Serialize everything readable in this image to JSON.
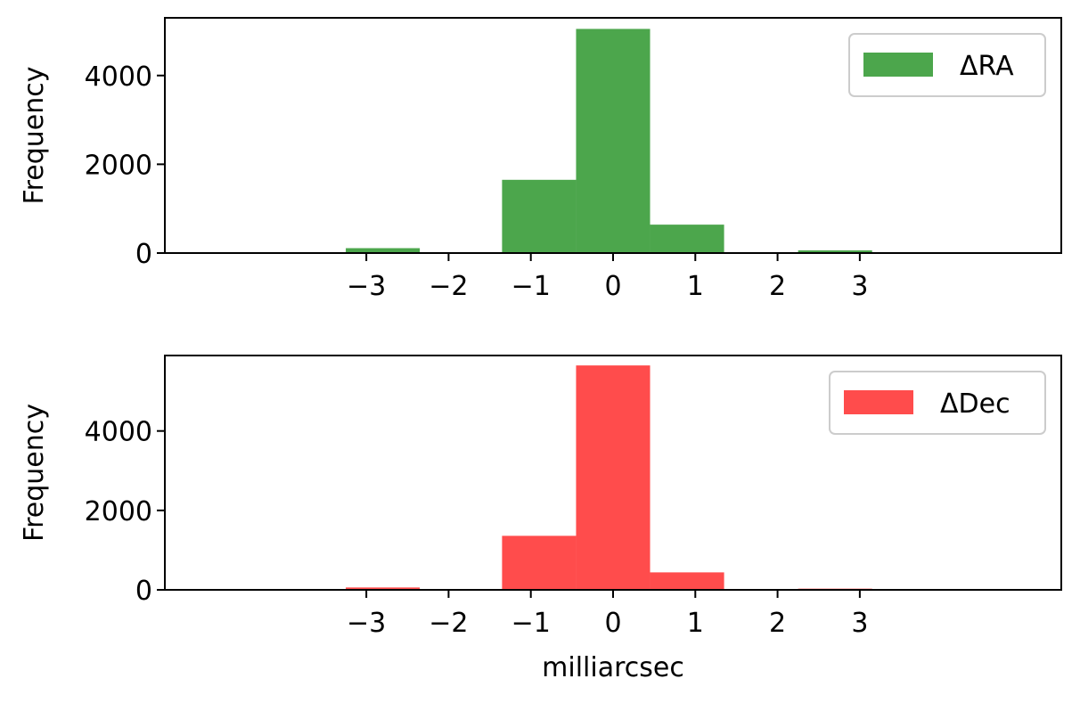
{
  "chart_data": [
    {
      "type": "bar",
      "series": [
        {
          "name": "ΔRA",
          "color": "#4ca64c",
          "bins": [
            {
              "x0": -3.25,
              "x1": -2.35,
              "value": 110
            },
            {
              "x0": -2.35,
              "x1": -1.35,
              "value": 0
            },
            {
              "x0": -1.35,
              "x1": -0.45,
              "value": 1650
            },
            {
              "x0": -0.45,
              "x1": 0.45,
              "value": 5050
            },
            {
              "x0": 0.45,
              "x1": 1.35,
              "value": 640
            },
            {
              "x0": 1.35,
              "x1": 2.25,
              "value": 0
            },
            {
              "x0": 2.25,
              "x1": 3.15,
              "value": 60
            }
          ]
        }
      ],
      "xlabel": "",
      "ylabel": "Frequency",
      "xlim": [
        -5.45,
        5.45
      ],
      "ylim": [
        0,
        5300
      ],
      "xticks": [
        -3,
        -2,
        -1,
        0,
        1,
        2,
        3
      ],
      "xtick_labels": [
        "−3",
        "−2",
        "−1",
        "0",
        "1",
        "2",
        "3"
      ],
      "yticks": [
        0,
        2000,
        4000
      ],
      "ytick_labels": [
        "0",
        "2000",
        "4000"
      ],
      "grid": false,
      "legend": "top-right"
    },
    {
      "type": "bar",
      "series": [
        {
          "name": "ΔDec",
          "color": "#ff4c4c",
          "bins": [
            {
              "x0": -3.25,
              "x1": -2.35,
              "value": 60
            },
            {
              "x0": -2.35,
              "x1": -1.35,
              "value": 0
            },
            {
              "x0": -1.35,
              "x1": -0.45,
              "value": 1360
            },
            {
              "x0": -0.45,
              "x1": 0.45,
              "value": 5650
            },
            {
              "x0": 0.45,
              "x1": 1.35,
              "value": 440
            },
            {
              "x0": 1.35,
              "x1": 2.25,
              "value": 0
            },
            {
              "x0": 2.25,
              "x1": 3.15,
              "value": 30
            }
          ]
        }
      ],
      "xlabel": "milliarcsec",
      "ylabel": "Frequency",
      "xlim": [
        -5.45,
        5.45
      ],
      "ylim": [
        0,
        5900
      ],
      "xticks": [
        -3,
        -2,
        -1,
        0,
        1,
        2,
        3
      ],
      "xtick_labels": [
        "−3",
        "−2",
        "−1",
        "0",
        "1",
        "2",
        "3"
      ],
      "yticks": [
        0,
        2000,
        4000
      ],
      "ytick_labels": [
        "0",
        "2000",
        "4000"
      ],
      "grid": false,
      "legend": "top-right"
    }
  ]
}
